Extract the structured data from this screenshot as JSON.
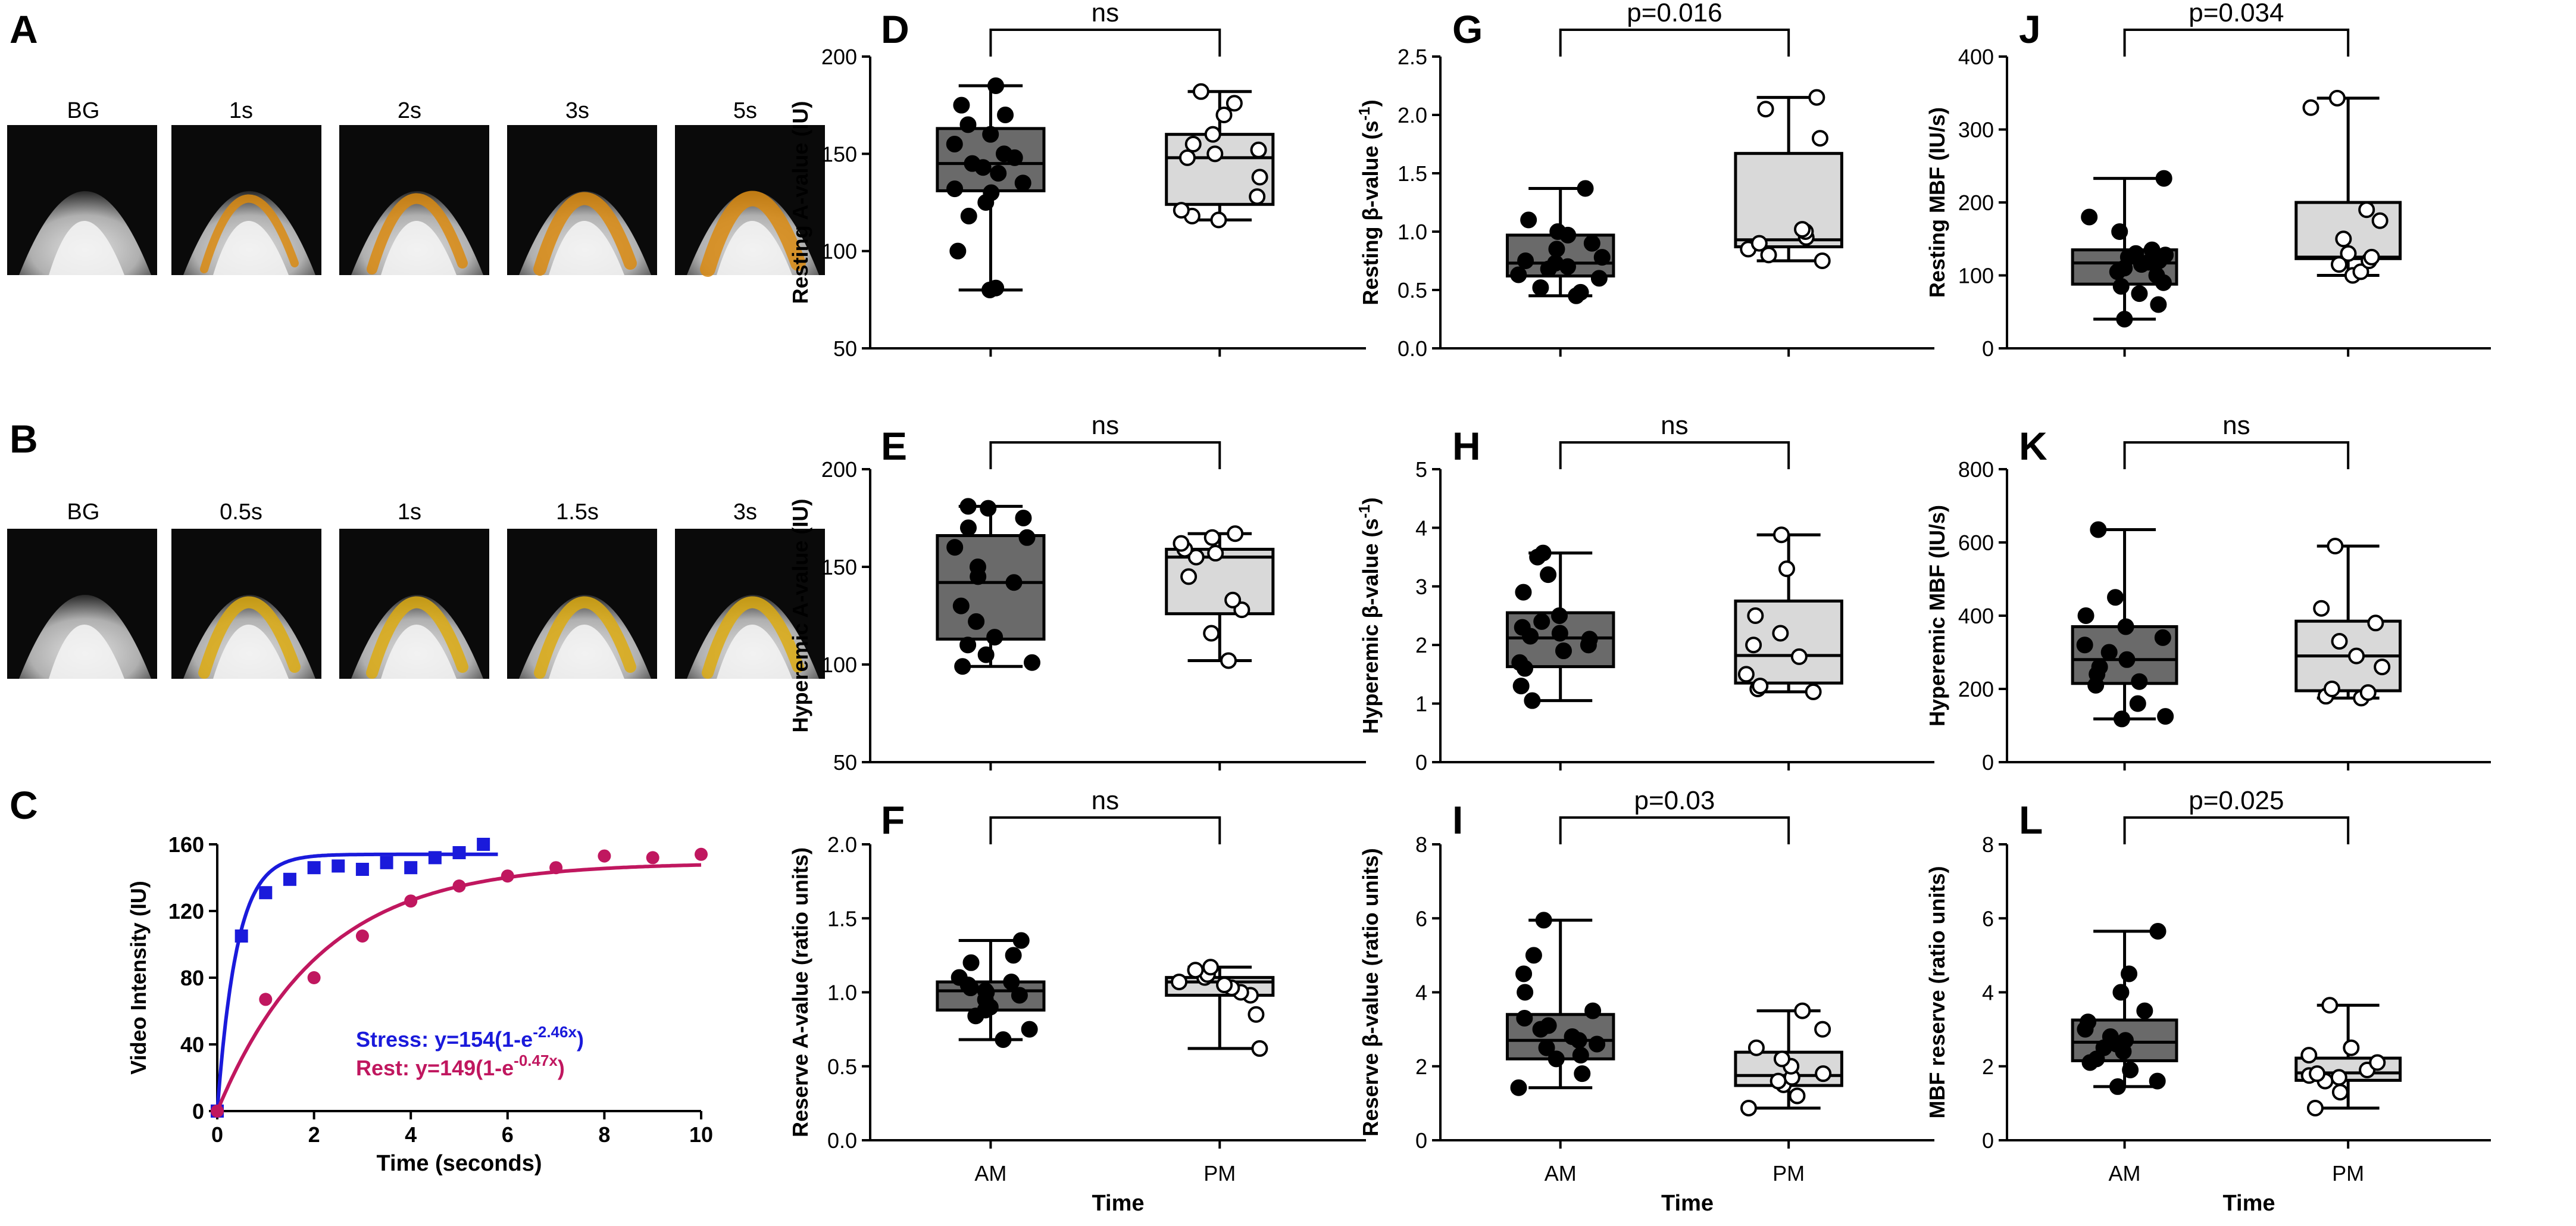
{
  "panels": {
    "A": {
      "letter": "A",
      "frames": [
        "BG",
        "1s",
        "2s",
        "3s",
        "5s"
      ]
    },
    "B": {
      "letter": "B",
      "frames": [
        "BG",
        "0.5s",
        "1s",
        "1.5s",
        "3s"
      ]
    },
    "C": {
      "letter": "C"
    }
  },
  "chart_data": [
    {
      "id": "C",
      "type": "scatter",
      "letter": "C",
      "xlabel": "Time (seconds)",
      "ylabel": "Video Intensity (IU)",
      "xlim": [
        0,
        10
      ],
      "ylim": [
        0,
        160
      ],
      "xticks": [
        "0",
        "2",
        "4",
        "6",
        "8",
        "10"
      ],
      "yticks": [
        "0",
        "40",
        "80",
        "120",
        "160"
      ],
      "series": [
        {
          "name": "Stress",
          "color": "#1a1adb",
          "marker": "square",
          "A": 154,
          "k": 2.46,
          "x": [
            0,
            0.5,
            1,
            1.5,
            2,
            2.5,
            3,
            3.5,
            4,
            4.5,
            5,
            5.5
          ],
          "y": [
            0,
            105,
            131,
            139,
            146,
            147,
            145,
            149,
            146,
            152,
            155,
            160
          ],
          "fit_xmax": 5.8,
          "eq_prefix": "Stress: y=154(1-e",
          "eq_exp": "-2.46x",
          "eq_suffix": ")"
        },
        {
          "name": "Rest",
          "color": "#c0175f",
          "marker": "circle",
          "A": 149,
          "k": 0.47,
          "x": [
            0,
            1,
            2,
            3,
            4,
            5,
            6,
            7,
            8,
            9,
            10
          ],
          "y": [
            0,
            67,
            80,
            105,
            126,
            135,
            141,
            146,
            153,
            152,
            154
          ],
          "fit_xmax": 10,
          "eq_prefix": "Rest: y=149(1-e",
          "eq_exp": "-0.47x",
          "eq_suffix": ")"
        }
      ]
    },
    {
      "id": "D",
      "type": "box",
      "letter": "D",
      "ylabel": "Resting A-value (IU)",
      "ylim": [
        50,
        200
      ],
      "yticks": [
        "50",
        "100",
        "150",
        "200"
      ],
      "xticks": [
        "",
        ""
      ],
      "xlabel": "",
      "sig": "ns",
      "groups": [
        {
          "name": "AM",
          "fill": "#6a6a6a",
          "open": false,
          "min": 80,
          "q1": 131,
          "median": 145,
          "q3": 163,
          "max": 185,
          "points": [
            80,
            81,
            100,
            118,
            125,
            130,
            132,
            135,
            140,
            143,
            145,
            148,
            150,
            155,
            160,
            165,
            170,
            175,
            185
          ]
        },
        {
          "name": "PM",
          "fill": "#d9d9d9",
          "open": true,
          "min": 116,
          "q1": 124,
          "median": 148,
          "q3": 160,
          "max": 182,
          "points": [
            116,
            118,
            121,
            128,
            138,
            148,
            150,
            152,
            155,
            160,
            170,
            176,
            182
          ]
        }
      ]
    },
    {
      "id": "E",
      "type": "box",
      "letter": "E",
      "ylabel": "Hyperemic A-value (IU)",
      "ylim": [
        50,
        200
      ],
      "yticks": [
        "50",
        "100",
        "150",
        "200"
      ],
      "xticks": [
        "",
        ""
      ],
      "xlabel": "",
      "sig": "ns",
      "groups": [
        {
          "name": "AM",
          "fill": "#6a6a6a",
          "open": false,
          "min": 99,
          "q1": 113,
          "median": 142,
          "q3": 166,
          "max": 181,
          "points": [
            99,
            101,
            105,
            110,
            114,
            122,
            130,
            142,
            145,
            150,
            160,
            165,
            170,
            175,
            180,
            181
          ]
        },
        {
          "name": "PM",
          "fill": "#d9d9d9",
          "open": true,
          "min": 102,
          "q1": 126,
          "median": 155,
          "q3": 159,
          "max": 167,
          "points": [
            102,
            116,
            128,
            133,
            145,
            155,
            157,
            159,
            162,
            165,
            167
          ]
        }
      ]
    },
    {
      "id": "F",
      "type": "box",
      "letter": "F",
      "ylabel": "Reserve A-value (ratio units)",
      "ylim": [
        0,
        2.0
      ],
      "yticks": [
        "0.0",
        "0.5",
        "1.0",
        "1.5",
        "2.0"
      ],
      "xticks": [
        "AM",
        "PM"
      ],
      "xlabel": "Time",
      "sig": "ns",
      "groups": [
        {
          "name": "AM",
          "fill": "#6a6a6a",
          "open": false,
          "min": 0.68,
          "q1": 0.88,
          "median": 1.01,
          "q3": 1.07,
          "max": 1.35,
          "points": [
            0.68,
            0.75,
            0.84,
            0.88,
            0.9,
            0.95,
            0.98,
            1.0,
            1.01,
            1.03,
            1.05,
            1.07,
            1.1,
            1.2,
            1.25,
            1.35
          ]
        },
        {
          "name": "PM",
          "fill": "#d9d9d9",
          "open": true,
          "min": 0.62,
          "q1": 0.98,
          "median": 1.07,
          "q3": 1.1,
          "max": 1.17,
          "points": [
            0.62,
            0.85,
            0.98,
            1.0,
            1.03,
            1.05,
            1.07,
            1.1,
            1.12,
            1.15,
            1.17
          ]
        }
      ]
    },
    {
      "id": "G",
      "type": "box",
      "letter": "G",
      "ylabel": "Resting β-value (s",
      "ylabel_sup": "-1",
      "ylabel_end": ")",
      "ylim": [
        0,
        2.5
      ],
      "yticks": [
        "0.0",
        "0.5",
        "1.0",
        "1.5",
        "2.0",
        "2.5"
      ],
      "xticks": [
        "",
        ""
      ],
      "xlabel": "",
      "sig": "p=0.016",
      "groups": [
        {
          "name": "AM",
          "fill": "#6a6a6a",
          "open": false,
          "min": 0.45,
          "q1": 0.62,
          "median": 0.73,
          "q3": 0.97,
          "max": 1.37,
          "points": [
            0.45,
            0.48,
            0.52,
            0.6,
            0.63,
            0.68,
            0.7,
            0.73,
            0.75,
            0.78,
            0.85,
            0.9,
            0.97,
            1.0,
            1.1,
            1.37
          ]
        },
        {
          "name": "PM",
          "fill": "#d9d9d9",
          "open": true,
          "min": 0.75,
          "q1": 0.87,
          "median": 0.93,
          "q3": 1.67,
          "max": 2.15,
          "points": [
            0.75,
            0.8,
            0.85,
            0.9,
            0.95,
            1.0,
            1.02,
            1.8,
            2.05,
            2.15
          ]
        }
      ]
    },
    {
      "id": "H",
      "type": "box",
      "letter": "H",
      "ylabel": "Hyperemic β-value (s",
      "ylabel_sup": "-1",
      "ylabel_end": ")",
      "ylim": [
        0,
        5
      ],
      "yticks": [
        "0",
        "1",
        "2",
        "3",
        "4",
        "5"
      ],
      "xticks": [
        "",
        ""
      ],
      "xlabel": "",
      "sig": "ns",
      "groups": [
        {
          "name": "AM",
          "fill": "#6a6a6a",
          "open": false,
          "min": 1.05,
          "q1": 1.63,
          "median": 2.12,
          "q3": 2.55,
          "max": 3.57,
          "points": [
            1.05,
            1.3,
            1.6,
            1.7,
            1.9,
            2.0,
            2.1,
            2.15,
            2.2,
            2.3,
            2.4,
            2.5,
            2.9,
            3.2,
            3.5,
            3.57
          ]
        },
        {
          "name": "PM",
          "fill": "#d9d9d9",
          "open": true,
          "min": 1.2,
          "q1": 1.35,
          "median": 1.82,
          "q3": 2.75,
          "max": 3.88,
          "points": [
            1.2,
            1.25,
            1.3,
            1.5,
            1.8,
            2.0,
            2.2,
            2.5,
            3.3,
            3.88
          ]
        }
      ]
    },
    {
      "id": "I",
      "type": "box",
      "letter": "I",
      "ylabel": "Reserve β-value (ratio units)",
      "ylim": [
        0,
        8
      ],
      "yticks": [
        "0",
        "2",
        "4",
        "6",
        "8"
      ],
      "xticks": [
        "AM",
        "PM"
      ],
      "xlabel": "Time",
      "sig": "p=0.03",
      "groups": [
        {
          "name": "AM",
          "fill": "#6a6a6a",
          "open": false,
          "min": 1.42,
          "q1": 2.2,
          "median": 2.7,
          "q3": 3.4,
          "max": 5.95,
          "points": [
            1.42,
            1.8,
            2.2,
            2.3,
            2.5,
            2.6,
            2.7,
            2.8,
            3.0,
            3.1,
            3.3,
            3.5,
            4.0,
            4.5,
            5.0,
            5.95
          ]
        },
        {
          "name": "PM",
          "fill": "#d9d9d9",
          "open": true,
          "min": 0.87,
          "q1": 1.48,
          "median": 1.75,
          "q3": 2.38,
          "max": 3.5,
          "points": [
            0.87,
            1.2,
            1.5,
            1.6,
            1.7,
            1.8,
            2.0,
            2.2,
            2.5,
            3.0,
            3.5
          ]
        }
      ]
    },
    {
      "id": "J",
      "type": "box",
      "letter": "J",
      "ylabel": "Resting MBF (IU/s)",
      "ylim": [
        0,
        400
      ],
      "yticks": [
        "0",
        "100",
        "200",
        "300",
        "400"
      ],
      "xticks": [
        "",
        ""
      ],
      "xlabel": "",
      "sig": "p=0.034",
      "groups": [
        {
          "name": "AM",
          "fill": "#6a6a6a",
          "open": false,
          "min": 40,
          "q1": 88,
          "median": 117,
          "q3": 135,
          "max": 233,
          "points": [
            40,
            60,
            75,
            85,
            90,
            100,
            105,
            110,
            115,
            118,
            120,
            125,
            128,
            130,
            135,
            160,
            180,
            233
          ]
        },
        {
          "name": "PM",
          "fill": "#d9d9d9",
          "open": true,
          "min": 100,
          "q1": 123,
          "median": 125,
          "q3": 200,
          "max": 343,
          "points": [
            100,
            105,
            115,
            120,
            125,
            130,
            150,
            175,
            190,
            330,
            343
          ]
        }
      ]
    },
    {
      "id": "K",
      "type": "box",
      "letter": "K",
      "ylabel": "Hyperemic MBF (IU/s)",
      "ylim": [
        0,
        800
      ],
      "yticks": [
        "0",
        "200",
        "400",
        "600",
        "800"
      ],
      "xticks": [
        "",
        ""
      ],
      "xlabel": "",
      "sig": "ns",
      "groups": [
        {
          "name": "AM",
          "fill": "#6a6a6a",
          "open": false,
          "min": 118,
          "q1": 215,
          "median": 280,
          "q3": 370,
          "max": 635,
          "points": [
            118,
            125,
            160,
            210,
            220,
            240,
            260,
            280,
            300,
            320,
            340,
            370,
            400,
            450,
            635
          ]
        },
        {
          "name": "PM",
          "fill": "#d9d9d9",
          "open": true,
          "min": 175,
          "q1": 195,
          "median": 290,
          "q3": 385,
          "max": 590,
          "points": [
            175,
            180,
            190,
            200,
            260,
            290,
            330,
            380,
            420,
            590
          ]
        }
      ]
    },
    {
      "id": "L",
      "type": "box",
      "letter": "L",
      "ylabel": "MBF reserve (ratio units)",
      "ylim": [
        0,
        8
      ],
      "yticks": [
        "0",
        "2",
        "4",
        "6",
        "8"
      ],
      "xticks": [
        "AM",
        "PM"
      ],
      "xlabel": "Time",
      "sig": "p=0.025",
      "groups": [
        {
          "name": "AM",
          "fill": "#6a6a6a",
          "open": false,
          "min": 1.45,
          "q1": 2.15,
          "median": 2.65,
          "q3": 3.25,
          "max": 5.65,
          "points": [
            1.45,
            1.6,
            1.9,
            2.1,
            2.2,
            2.4,
            2.5,
            2.6,
            2.7,
            2.8,
            3.0,
            3.2,
            3.5,
            4.0,
            4.5,
            5.65
          ]
        },
        {
          "name": "PM",
          "fill": "#d9d9d9",
          "open": true,
          "min": 0.87,
          "q1": 1.62,
          "median": 1.82,
          "q3": 2.22,
          "max": 3.65,
          "points": [
            0.87,
            1.3,
            1.6,
            1.7,
            1.75,
            1.8,
            1.9,
            2.1,
            2.3,
            2.5,
            3.65
          ]
        }
      ]
    }
  ]
}
